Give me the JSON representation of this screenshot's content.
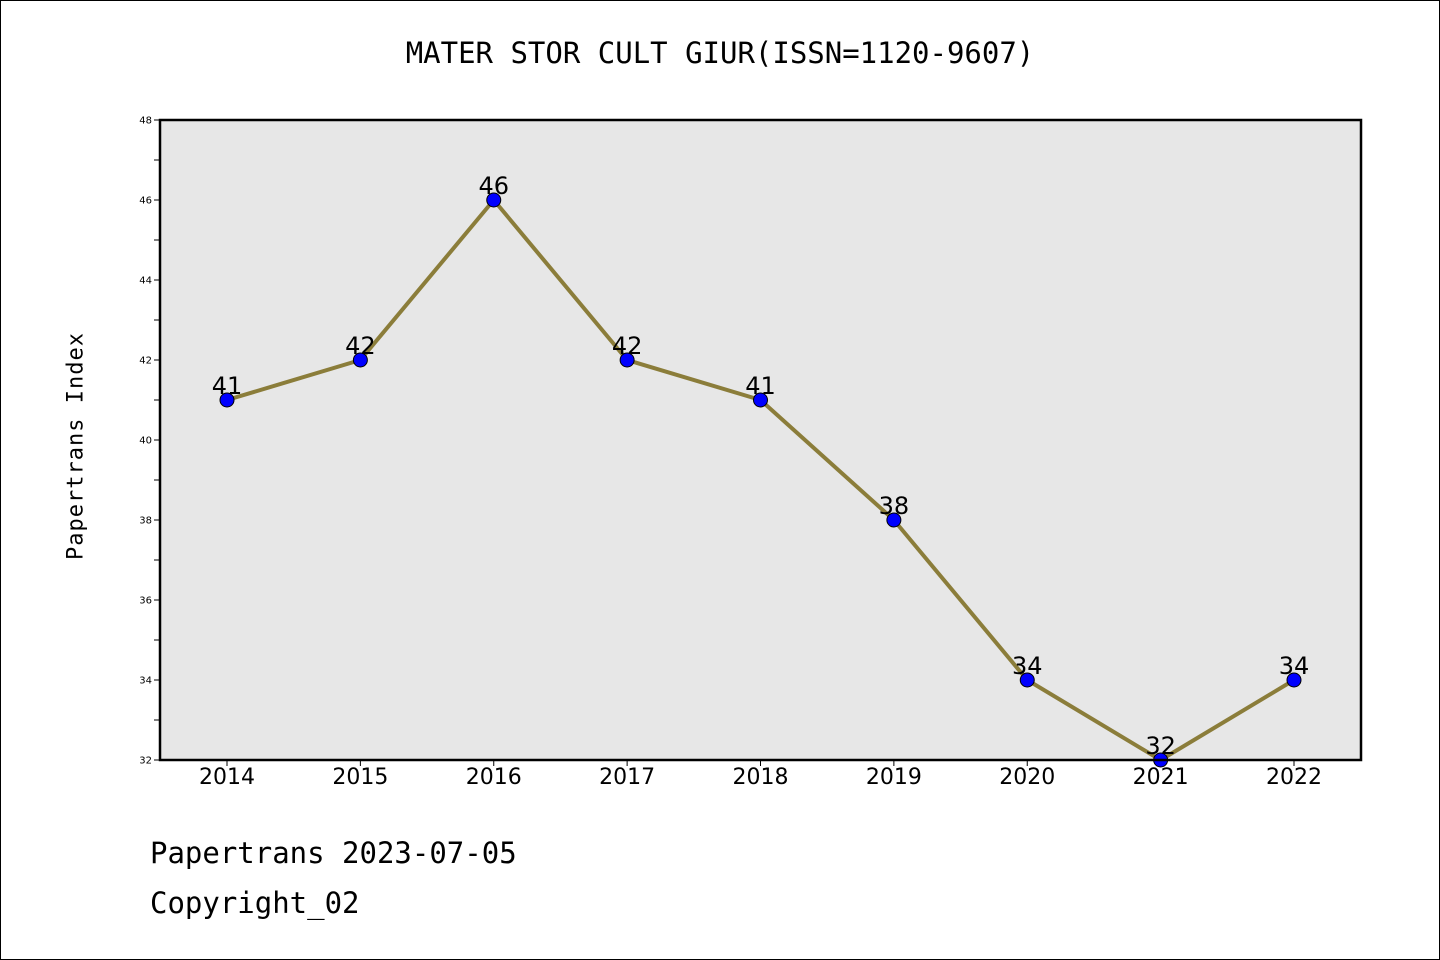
{
  "chart_data": {
    "type": "line",
    "title": "MATER STOR CULT GIUR(ISSN=1120-9607)",
    "xlabel": "",
    "ylabel": "Papertrans Index",
    "categories": [
      "2014",
      "2015",
      "2016",
      "2017",
      "2018",
      "2019",
      "2020",
      "2021",
      "2022"
    ],
    "series": [
      {
        "values": [
          41,
          42,
          46,
          42,
          41,
          38,
          34,
          32,
          34
        ]
      }
    ],
    "ylim": [
      32,
      48
    ],
    "yticks": [
      32,
      34,
      36,
      38,
      40,
      42,
      44,
      46,
      48
    ],
    "grid": false,
    "data_labels": true,
    "colors": {
      "line": "#8b7d3a",
      "marker": "#0000ff",
      "plot_background": "#e7e7e7"
    }
  },
  "footer": {
    "date_text": "Papertrans 2023-07-05",
    "copyright_text": "Copyright_02"
  }
}
